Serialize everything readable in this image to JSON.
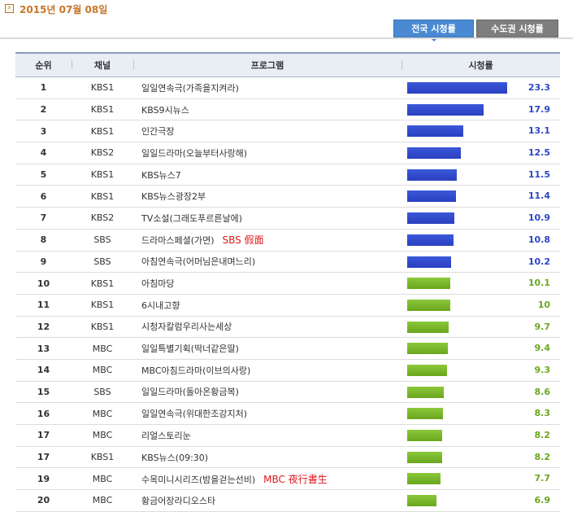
{
  "header": {
    "date": "2015년 07월 08일",
    "date_icon": "chevron-right-icon",
    "tabs": [
      {
        "label": "전국 시청률",
        "active": true
      },
      {
        "label": "수도권 시청률",
        "active": false
      }
    ]
  },
  "table": {
    "columns": [
      "순위",
      "채널",
      "프로그램",
      "시청률"
    ],
    "max_rating": 23.3,
    "colors": {
      "top9": "#2c47c4",
      "rest": "#6aa61e"
    },
    "rows": [
      {
        "rank": "1",
        "channel": "KBS1",
        "program": "일일연속극(가족을지켜라)",
        "note": "",
        "rating": "23.3",
        "value": 23.3,
        "color": "blue"
      },
      {
        "rank": "2",
        "channel": "KBS1",
        "program": "KBS9시뉴스",
        "note": "",
        "rating": "17.9",
        "value": 17.9,
        "color": "blue"
      },
      {
        "rank": "3",
        "channel": "KBS1",
        "program": "인간극장",
        "note": "",
        "rating": "13.1",
        "value": 13.1,
        "color": "blue"
      },
      {
        "rank": "4",
        "channel": "KBS2",
        "program": "일일드라마(오늘부터사랑해)",
        "note": "",
        "rating": "12.5",
        "value": 12.5,
        "color": "blue"
      },
      {
        "rank": "5",
        "channel": "KBS1",
        "program": "KBS뉴스7",
        "note": "",
        "rating": "11.5",
        "value": 11.5,
        "color": "blue"
      },
      {
        "rank": "6",
        "channel": "KBS1",
        "program": "KBS뉴스광장2부",
        "note": "",
        "rating": "11.4",
        "value": 11.4,
        "color": "blue"
      },
      {
        "rank": "7",
        "channel": "KBS2",
        "program": "TV소설(그래도푸르른날에)",
        "note": "",
        "rating": "10.9",
        "value": 10.9,
        "color": "blue"
      },
      {
        "rank": "8",
        "channel": "SBS",
        "program": "드라마스페셜(가면)",
        "note": "SBS 假面",
        "rating": "10.8",
        "value": 10.8,
        "color": "blue"
      },
      {
        "rank": "9",
        "channel": "SBS",
        "program": "아침연속극(어머님은내며느리)",
        "note": "",
        "rating": "10.2",
        "value": 10.2,
        "color": "blue"
      },
      {
        "rank": "10",
        "channel": "KBS1",
        "program": "아침마당",
        "note": "",
        "rating": "10.1",
        "value": 10.1,
        "color": "green"
      },
      {
        "rank": "11",
        "channel": "KBS1",
        "program": "6시내고향",
        "note": "",
        "rating": "10",
        "value": 10,
        "color": "green"
      },
      {
        "rank": "12",
        "channel": "KBS1",
        "program": "시청자칼럼우리사는세상",
        "note": "",
        "rating": "9.7",
        "value": 9.7,
        "color": "green"
      },
      {
        "rank": "13",
        "channel": "MBC",
        "program": "일일특별기획(딱너같은딸)",
        "note": "",
        "rating": "9.4",
        "value": 9.4,
        "color": "green"
      },
      {
        "rank": "14",
        "channel": "MBC",
        "program": "MBC아침드라마(이브의사랑)",
        "note": "",
        "rating": "9.3",
        "value": 9.3,
        "color": "green"
      },
      {
        "rank": "15",
        "channel": "SBS",
        "program": "일일드라마(돌아온황금복)",
        "note": "",
        "rating": "8.6",
        "value": 8.6,
        "color": "green"
      },
      {
        "rank": "16",
        "channel": "MBC",
        "program": "일일연속극(위대한조강지처)",
        "note": "",
        "rating": "8.3",
        "value": 8.3,
        "color": "green"
      },
      {
        "rank": "17",
        "channel": "MBC",
        "program": "리얼스토리눈",
        "note": "",
        "rating": "8.2",
        "value": 8.2,
        "color": "green"
      },
      {
        "rank": "17",
        "channel": "KBS1",
        "program": "KBS뉴스(09:30)",
        "note": "",
        "rating": "8.2",
        "value": 8.2,
        "color": "green"
      },
      {
        "rank": "19",
        "channel": "MBC",
        "program": "수목미니시리즈(밤을걷는선비)",
        "note": "MBC 夜行書生",
        "rating": "7.7",
        "value": 7.7,
        "color": "green"
      },
      {
        "rank": "20",
        "channel": "MBC",
        "program": "황금어장라디오스타",
        "note": "",
        "rating": "6.9",
        "value": 6.9,
        "color": "green"
      }
    ]
  }
}
